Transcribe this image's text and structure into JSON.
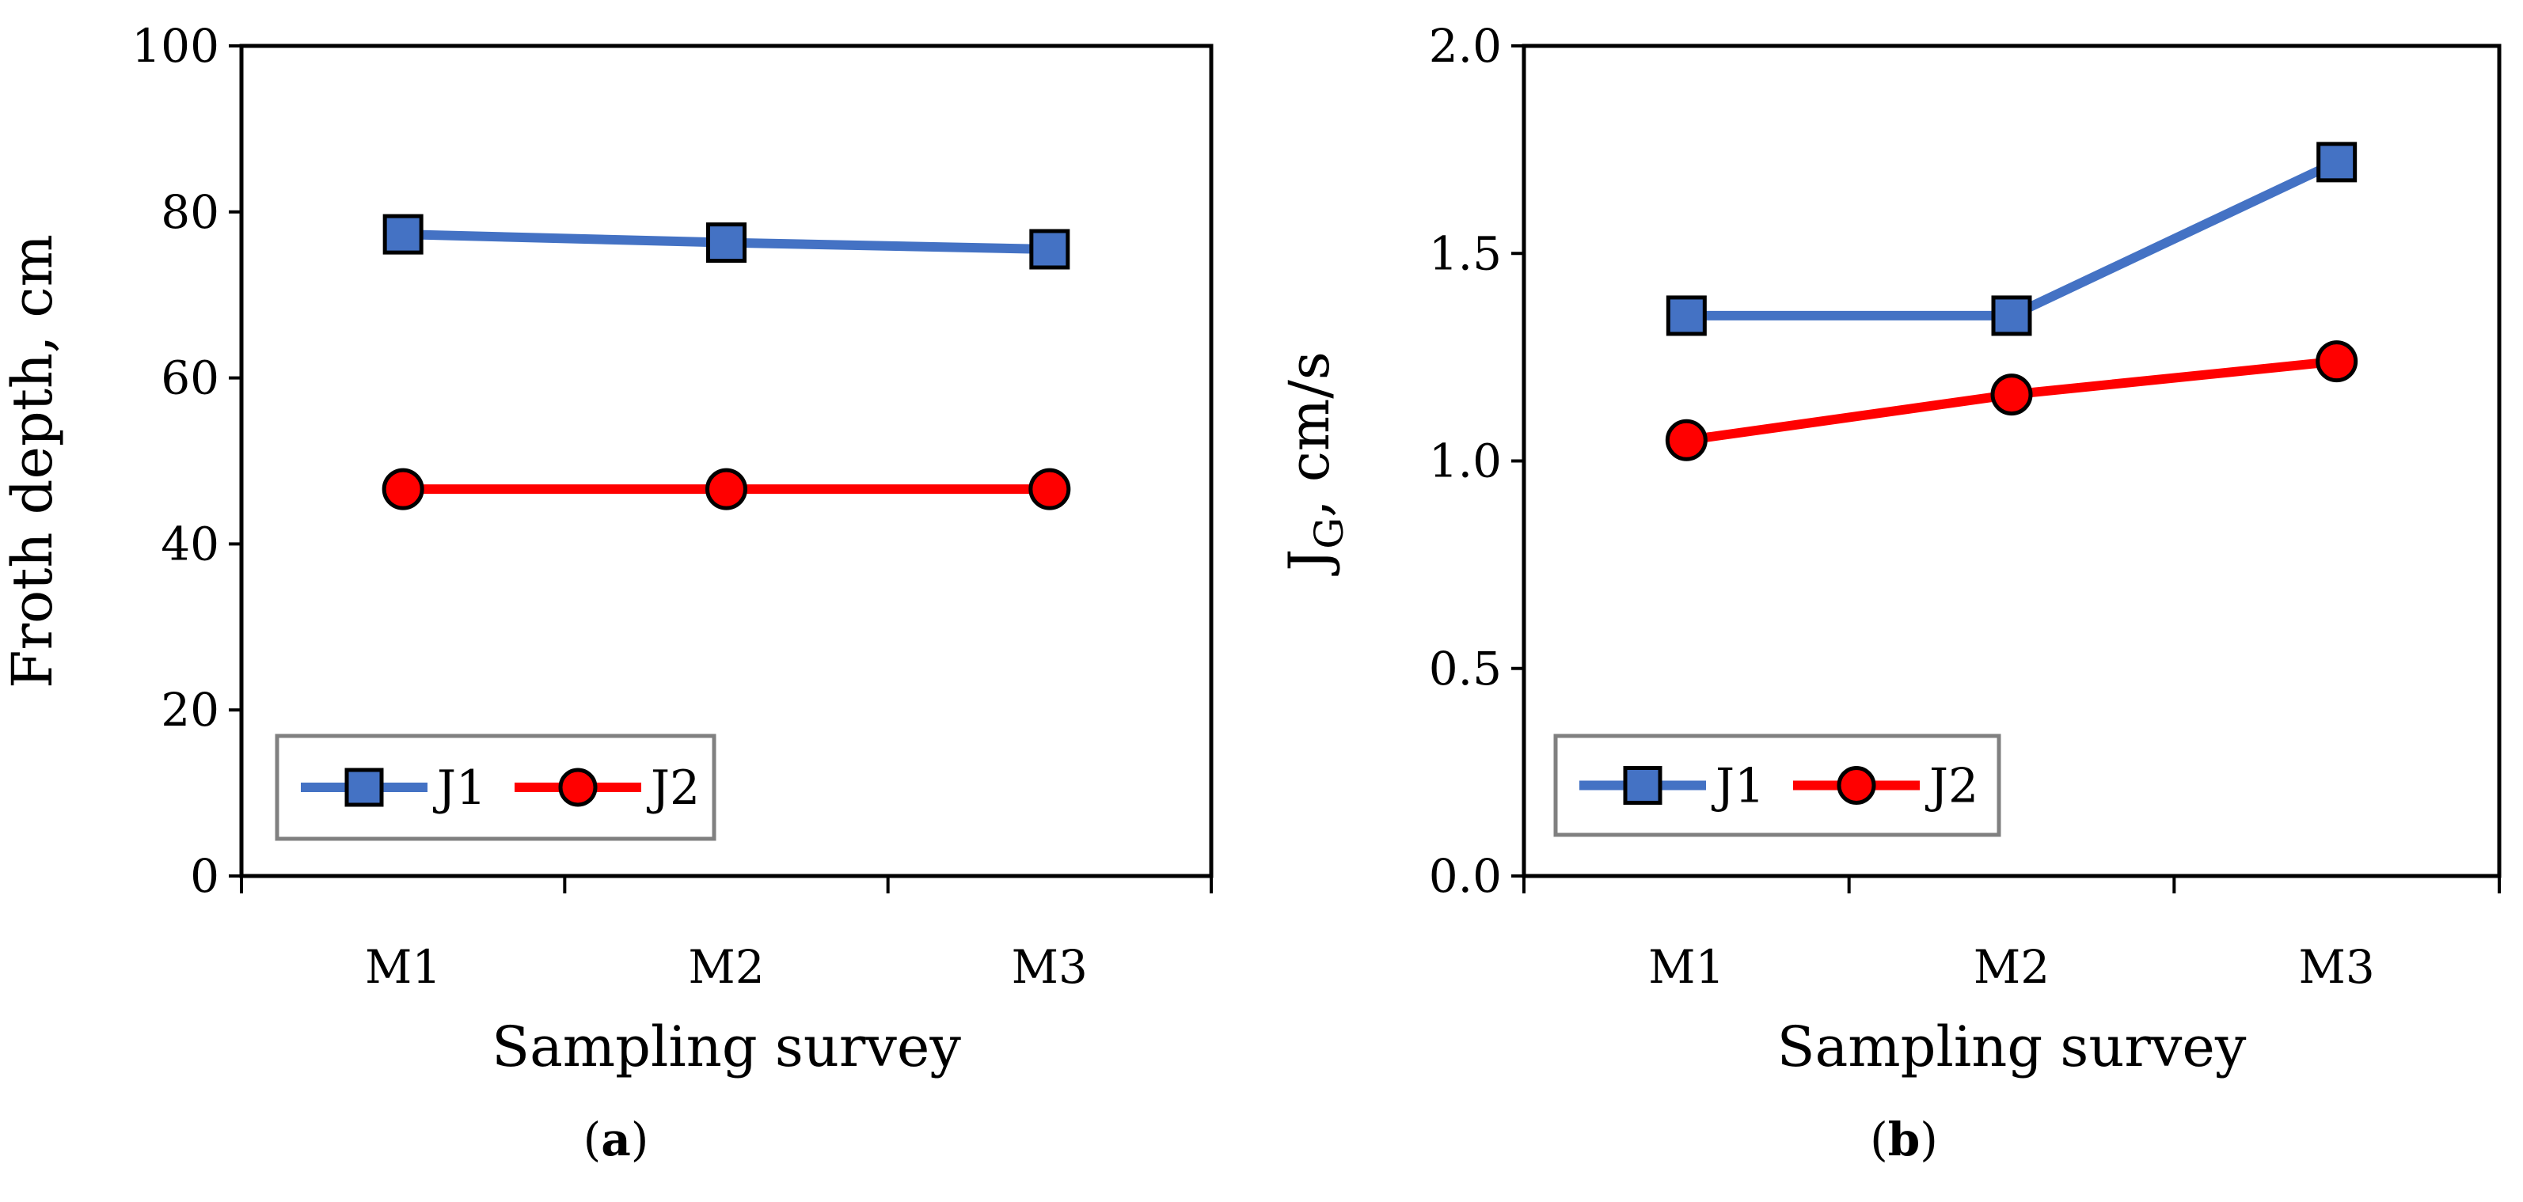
{
  "chart_data": [
    {
      "type": "line",
      "panel_label_open": "(",
      "panel_label_letter": "a",
      "panel_label_close": ")",
      "categories": [
        "M1",
        "M2",
        "M3"
      ],
      "series": [
        {
          "name": "J1",
          "values": [
            77.3,
            76.3,
            75.5
          ],
          "color": "#4472C4",
          "marker": "square",
          "marker_fill": "#4472C4"
        },
        {
          "name": "J2",
          "values": [
            46.6,
            46.6,
            46.6
          ],
          "color": "#FF0000",
          "marker": "circle",
          "marker_fill": "#FF0000"
        }
      ],
      "xlabel": "Sampling survey",
      "ylabel": "Froth depth, cm",
      "ylim": [
        0,
        100
      ],
      "yticks": [
        0,
        20,
        40,
        60,
        80,
        100
      ],
      "ytick_labels": [
        "0",
        "20",
        "40",
        "60",
        "80",
        "100"
      ],
      "grid": false,
      "legend": "bottom-left"
    },
    {
      "type": "line",
      "panel_label_open": "(",
      "panel_label_letter": "b",
      "panel_label_close": ")",
      "categories": [
        "M1",
        "M2",
        "M3"
      ],
      "series": [
        {
          "name": "J1",
          "values": [
            1.35,
            1.35,
            1.72
          ],
          "color": "#4472C4",
          "marker": "square",
          "marker_fill": "#4472C4"
        },
        {
          "name": "J2",
          "values": [
            1.05,
            1.16,
            1.24
          ],
          "color": "#FF0000",
          "marker": "circle",
          "marker_fill": "#FF0000"
        }
      ],
      "xlabel": "Sampling survey",
      "ylabel_main": "J",
      "ylabel_sub": "G",
      "ylabel_rest": ", cm/s",
      "ylim": [
        0,
        2.0
      ],
      "yticks": [
        0,
        0.5,
        1.0,
        1.5,
        2.0
      ],
      "ytick_labels": [
        "0.0",
        "0.5",
        "1.0",
        "1.5",
        "2.0"
      ],
      "grid": false,
      "legend": "bottom-left"
    }
  ]
}
